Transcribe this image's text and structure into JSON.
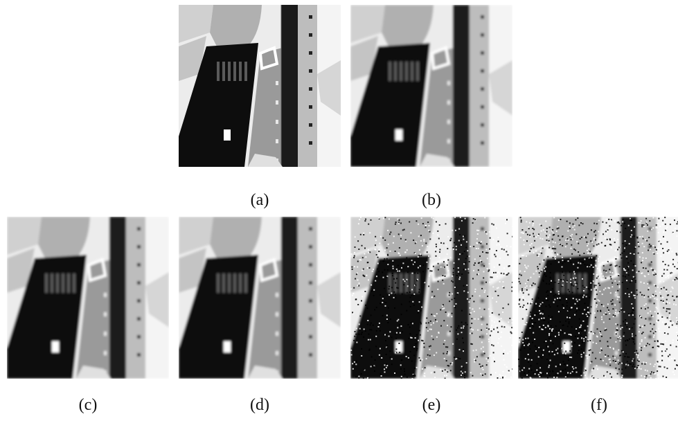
{
  "figure": {
    "panels": [
      {
        "id": "a",
        "label": "(a)",
        "variant": "sharp",
        "noise": 0
      },
      {
        "id": "b",
        "label": "(b)",
        "variant": "blur",
        "noise": 0
      },
      {
        "id": "c",
        "label": "(c)",
        "variant": "blur",
        "noise": 0
      },
      {
        "id": "d",
        "label": "(d)",
        "variant": "blur",
        "noise": 0
      },
      {
        "id": "e",
        "label": "(e)",
        "variant": "noisy",
        "noise": 1
      },
      {
        "id": "f",
        "label": "(f)",
        "variant": "noisy",
        "noise": 2
      }
    ]
  },
  "colors": {
    "background": "#ffffff",
    "road": "#0d0d0d",
    "building": "#9a9a9a",
    "roof": "#bdbdbd",
    "light": "#ececec",
    "water": "#1a1a1a"
  }
}
